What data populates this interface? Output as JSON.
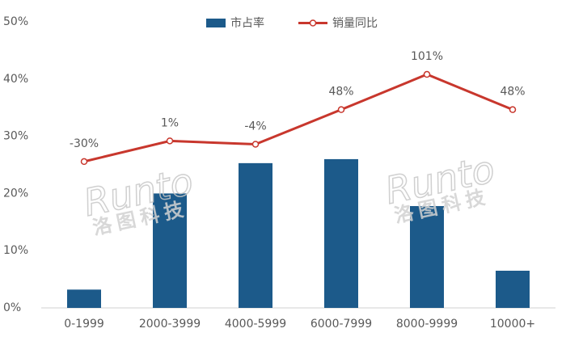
{
  "chart_data": {
    "type": "bar_line",
    "categories": [
      "0-1999",
      "2000-3999",
      "4000-5999",
      "6000-7999",
      "8000-9999",
      "10000+"
    ],
    "series": [
      {
        "name": "市占率",
        "color": "#1c5a8a",
        "type": "bar",
        "values": [
          3.2,
          20.0,
          25.3,
          26.0,
          17.8,
          6.5
        ]
      },
      {
        "name": "销量同比",
        "color": "#c8372d",
        "type": "line",
        "axis": "y2",
        "values": [
          -30,
          1,
          -4,
          48,
          101,
          48
        ],
        "value_labels": [
          "-30%",
          "1%",
          "-4%",
          "48%",
          "101%",
          "48%"
        ]
      }
    ],
    "ylim": [
      0,
      50
    ],
    "yticks": [
      {
        "value": 0,
        "label": "0%"
      },
      {
        "value": 10,
        "label": "10%"
      },
      {
        "value": 20,
        "label": "20%"
      },
      {
        "value": 30,
        "label": "30%"
      },
      {
        "value": 40,
        "label": "40%"
      },
      {
        "value": 50,
        "label": "50%"
      }
    ],
    "y2lim": [
      -250,
      180
    ],
    "legend": "top",
    "watermark": [
      "Runto",
      "洛图科技"
    ]
  }
}
